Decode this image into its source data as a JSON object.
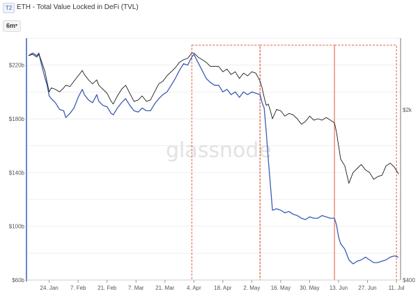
{
  "header": {
    "badge": "T2",
    "title": "ETH - Total Value Locked in DeFi (TVL)"
  },
  "controls": {
    "range": "6m",
    "range_caret": "▾"
  },
  "watermark": "glassnode",
  "colors": {
    "tvl": "#3b5bb5",
    "price": "#1a1a1a",
    "highlight": "#e05a3a",
    "axis": "#3b5bb5"
  },
  "chart_data": {
    "type": "line",
    "title": "ETH - Total Value Locked in DeFi (TVL)",
    "xlim": [
      "2022-01-13",
      "2022-07-13"
    ],
    "y_left": {
      "lim": [
        60,
        240
      ],
      "ticks": [
        "$60b",
        "$100b",
        "$140b",
        "$180b",
        "$220b"
      ],
      "tick_values": [
        60,
        100,
        140,
        180,
        220
      ]
    },
    "y_right": {
      "ticks": [
        "$2k",
        "$400"
      ]
    },
    "x_ticks": [
      {
        "date": "2022-01-24",
        "label": "24. Jan"
      },
      {
        "date": "2022-02-07",
        "label": "7. Feb"
      },
      {
        "date": "2022-02-21",
        "label": "21. Feb"
      },
      {
        "date": "2022-03-07",
        "label": "7. Mar"
      },
      {
        "date": "2022-03-21",
        "label": "21. Mar"
      },
      {
        "date": "2022-04-04",
        "label": "4. Apr"
      },
      {
        "date": "2022-04-18",
        "label": "18. Apr"
      },
      {
        "date": "2022-05-02",
        "label": "2. May"
      },
      {
        "date": "2022-05-16",
        "label": "16. May"
      },
      {
        "date": "2022-05-30",
        "label": "30. May"
      },
      {
        "date": "2022-06-13",
        "label": "13. Jun"
      },
      {
        "date": "2022-06-27",
        "label": "27. Jun"
      },
      {
        "date": "2022-07-11",
        "label": "11. Jul"
      }
    ],
    "highlight_boxes": [
      {
        "start": "2022-04-03",
        "end": "2022-05-06"
      },
      {
        "start": "2022-05-06",
        "end": "2022-06-11"
      },
      {
        "start": "2022-06-11",
        "end": "2022-07-11"
      }
    ],
    "series": [
      {
        "key": "tvl",
        "axis": "left",
        "points": [
          [
            "2022-01-14",
            227
          ],
          [
            "2022-01-16",
            229
          ],
          [
            "2022-01-18",
            227
          ],
          [
            "2022-01-19",
            229
          ],
          [
            "2022-01-20",
            222
          ],
          [
            "2022-01-22",
            210
          ],
          [
            "2022-01-23",
            205
          ],
          [
            "2022-01-24",
            197
          ],
          [
            "2022-01-25",
            195
          ],
          [
            "2022-01-27",
            192
          ],
          [
            "2022-01-29",
            187
          ],
          [
            "2022-01-31",
            186
          ],
          [
            "2022-02-01",
            181
          ],
          [
            "2022-02-03",
            184
          ],
          [
            "2022-02-05",
            188
          ],
          [
            "2022-02-07",
            196
          ],
          [
            "2022-02-09",
            202
          ],
          [
            "2022-02-10",
            198
          ],
          [
            "2022-02-12",
            194
          ],
          [
            "2022-02-14",
            192
          ],
          [
            "2022-02-16",
            198
          ],
          [
            "2022-02-17",
            193
          ],
          [
            "2022-02-19",
            190
          ],
          [
            "2022-02-21",
            189
          ],
          [
            "2022-02-23",
            184
          ],
          [
            "2022-02-24",
            183
          ],
          [
            "2022-02-26",
            188
          ],
          [
            "2022-02-28",
            192
          ],
          [
            "2022-03-02",
            195
          ],
          [
            "2022-03-04",
            190
          ],
          [
            "2022-03-06",
            186
          ],
          [
            "2022-03-08",
            185
          ],
          [
            "2022-03-10",
            188
          ],
          [
            "2022-03-12",
            186
          ],
          [
            "2022-03-14",
            186
          ],
          [
            "2022-03-16",
            191
          ],
          [
            "2022-03-18",
            195
          ],
          [
            "2022-03-20",
            198
          ],
          [
            "2022-03-22",
            200
          ],
          [
            "2022-03-24",
            205
          ],
          [
            "2022-03-26",
            210
          ],
          [
            "2022-03-28",
            216
          ],
          [
            "2022-03-30",
            221
          ],
          [
            "2022-04-01",
            220
          ],
          [
            "2022-04-03",
            226
          ],
          [
            "2022-04-04",
            228
          ],
          [
            "2022-04-06",
            222
          ],
          [
            "2022-04-08",
            216
          ],
          [
            "2022-04-10",
            210
          ],
          [
            "2022-04-12",
            207
          ],
          [
            "2022-04-14",
            205
          ],
          [
            "2022-04-16",
            205
          ],
          [
            "2022-04-18",
            200
          ],
          [
            "2022-04-20",
            202
          ],
          [
            "2022-04-22",
            198
          ],
          [
            "2022-04-24",
            200
          ],
          [
            "2022-04-26",
            196
          ],
          [
            "2022-04-28",
            200
          ],
          [
            "2022-04-30",
            198
          ],
          [
            "2022-05-02",
            200
          ],
          [
            "2022-05-04",
            199
          ],
          [
            "2022-05-06",
            198
          ],
          [
            "2022-05-07",
            192
          ],
          [
            "2022-05-08",
            188
          ],
          [
            "2022-05-09",
            170
          ],
          [
            "2022-05-10",
            150
          ],
          [
            "2022-05-11",
            131
          ],
          [
            "2022-05-12",
            112
          ],
          [
            "2022-05-14",
            113
          ],
          [
            "2022-05-16",
            112
          ],
          [
            "2022-05-18",
            110
          ],
          [
            "2022-05-20",
            111
          ],
          [
            "2022-05-22",
            109
          ],
          [
            "2022-05-24",
            108
          ],
          [
            "2022-05-26",
            106
          ],
          [
            "2022-05-28",
            105
          ],
          [
            "2022-05-30",
            107
          ],
          [
            "2022-06-01",
            106
          ],
          [
            "2022-06-03",
            106
          ],
          [
            "2022-06-05",
            108
          ],
          [
            "2022-06-07",
            107
          ],
          [
            "2022-06-09",
            106
          ],
          [
            "2022-06-11",
            106
          ],
          [
            "2022-06-12",
            101
          ],
          [
            "2022-06-13",
            92
          ],
          [
            "2022-06-14",
            87
          ],
          [
            "2022-06-16",
            83
          ],
          [
            "2022-06-18",
            75
          ],
          [
            "2022-06-20",
            72
          ],
          [
            "2022-06-22",
            74
          ],
          [
            "2022-06-24",
            75
          ],
          [
            "2022-06-26",
            77
          ],
          [
            "2022-06-28",
            75
          ],
          [
            "2022-06-30",
            73
          ],
          [
            "2022-07-02",
            73
          ],
          [
            "2022-07-04",
            74
          ],
          [
            "2022-07-06",
            75
          ],
          [
            "2022-07-08",
            77
          ],
          [
            "2022-07-10",
            78
          ],
          [
            "2022-07-12",
            77
          ]
        ]
      },
      {
        "key": "price",
        "axis": "right",
        "points": [
          [
            "2022-01-14",
            227
          ],
          [
            "2022-01-16",
            228
          ],
          [
            "2022-01-18",
            226
          ],
          [
            "2022-01-19",
            228
          ],
          [
            "2022-01-20",
            224
          ],
          [
            "2022-01-22",
            215
          ],
          [
            "2022-01-23",
            207
          ],
          [
            "2022-01-24",
            200
          ],
          [
            "2022-01-25",
            203
          ],
          [
            "2022-01-27",
            202
          ],
          [
            "2022-01-29",
            200
          ],
          [
            "2022-01-31",
            203
          ],
          [
            "2022-02-01",
            205
          ],
          [
            "2022-02-03",
            204
          ],
          [
            "2022-02-05",
            208
          ],
          [
            "2022-02-07",
            212
          ],
          [
            "2022-02-09",
            216
          ],
          [
            "2022-02-10",
            213
          ],
          [
            "2022-02-12",
            209
          ],
          [
            "2022-02-14",
            206
          ],
          [
            "2022-02-16",
            209
          ],
          [
            "2022-02-17",
            205
          ],
          [
            "2022-02-19",
            202
          ],
          [
            "2022-02-21",
            199
          ],
          [
            "2022-02-23",
            193
          ],
          [
            "2022-02-24",
            191
          ],
          [
            "2022-02-26",
            197
          ],
          [
            "2022-02-28",
            202
          ],
          [
            "2022-03-02",
            205
          ],
          [
            "2022-03-04",
            199
          ],
          [
            "2022-03-06",
            193
          ],
          [
            "2022-03-08",
            194
          ],
          [
            "2022-03-10",
            197
          ],
          [
            "2022-03-12",
            193
          ],
          [
            "2022-03-14",
            194
          ],
          [
            "2022-03-16",
            200
          ],
          [
            "2022-03-18",
            206
          ],
          [
            "2022-03-20",
            208
          ],
          [
            "2022-03-22",
            212
          ],
          [
            "2022-03-24",
            215
          ],
          [
            "2022-03-26",
            218
          ],
          [
            "2022-03-28",
            222
          ],
          [
            "2022-03-30",
            224
          ],
          [
            "2022-04-01",
            225
          ],
          [
            "2022-04-03",
            229
          ],
          [
            "2022-04-04",
            229
          ],
          [
            "2022-04-06",
            226
          ],
          [
            "2022-04-08",
            224
          ],
          [
            "2022-04-10",
            222
          ],
          [
            "2022-04-12",
            219
          ],
          [
            "2022-04-14",
            219
          ],
          [
            "2022-04-16",
            219
          ],
          [
            "2022-04-18",
            215
          ],
          [
            "2022-04-20",
            217
          ],
          [
            "2022-04-22",
            213
          ],
          [
            "2022-04-24",
            215
          ],
          [
            "2022-04-26",
            210
          ],
          [
            "2022-04-28",
            214
          ],
          [
            "2022-04-30",
            212
          ],
          [
            "2022-05-02",
            215
          ],
          [
            "2022-05-04",
            214
          ],
          [
            "2022-05-06",
            208
          ],
          [
            "2022-05-07",
            203
          ],
          [
            "2022-05-08",
            196
          ],
          [
            "2022-05-09",
            190
          ],
          [
            "2022-05-10",
            191
          ],
          [
            "2022-05-11",
            186
          ],
          [
            "2022-05-12",
            180
          ],
          [
            "2022-05-14",
            187
          ],
          [
            "2022-05-16",
            186
          ],
          [
            "2022-05-18",
            182
          ],
          [
            "2022-05-20",
            184
          ],
          [
            "2022-05-22",
            183
          ],
          [
            "2022-05-24",
            180
          ],
          [
            "2022-05-26",
            176
          ],
          [
            "2022-05-28",
            178
          ],
          [
            "2022-05-30",
            182
          ],
          [
            "2022-06-01",
            179
          ],
          [
            "2022-06-03",
            180
          ],
          [
            "2022-06-05",
            179
          ],
          [
            "2022-06-07",
            181
          ],
          [
            "2022-06-09",
            179
          ],
          [
            "2022-06-11",
            177
          ],
          [
            "2022-06-12",
            170
          ],
          [
            "2022-06-13",
            160
          ],
          [
            "2022-06-14",
            150
          ],
          [
            "2022-06-16",
            145
          ],
          [
            "2022-06-18",
            132
          ],
          [
            "2022-06-20",
            140
          ],
          [
            "2022-06-22",
            143
          ],
          [
            "2022-06-24",
            146
          ],
          [
            "2022-06-26",
            142
          ],
          [
            "2022-06-28",
            140
          ],
          [
            "2022-06-30",
            135
          ],
          [
            "2022-07-02",
            137
          ],
          [
            "2022-07-04",
            138
          ],
          [
            "2022-07-06",
            145
          ],
          [
            "2022-07-08",
            147
          ],
          [
            "2022-07-10",
            144
          ],
          [
            "2022-07-12",
            139
          ]
        ]
      }
    ]
  }
}
